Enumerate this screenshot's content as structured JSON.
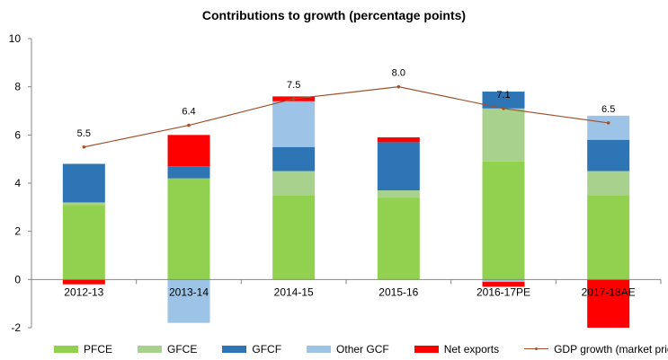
{
  "chart_data": {
    "type": "bar",
    "title": "Contributions to growth (percentage points)",
    "categories": [
      "2012-13",
      "2013-14",
      "2014-15",
      "2015-16",
      "2016-17PE",
      "2017-18AE"
    ],
    "ylim": [
      -2,
      10
    ],
    "yticks": [
      -2,
      0,
      2,
      4,
      6,
      8,
      10
    ],
    "legend_position": "bottom",
    "grid": false,
    "stacked": true,
    "series": [
      {
        "name": "PFCE",
        "color": "#92D050",
        "values": [
          3.1,
          4.2,
          3.5,
          3.4,
          4.9,
          3.5
        ]
      },
      {
        "name": "GFCE",
        "color": "#A9D18E",
        "values": [
          0.1,
          0.0,
          1.0,
          0.3,
          2.2,
          1.0
        ]
      },
      {
        "name": "GFCF",
        "color": "#2E75B6",
        "values": [
          1.6,
          0.5,
          1.0,
          2.0,
          0.7,
          1.3
        ]
      },
      {
        "name": "Other GCF",
        "color": "#9DC3E6",
        "values": [
          0.0,
          -1.8,
          1.9,
          0.0,
          -0.1,
          1.0
        ]
      },
      {
        "name": "Net exports",
        "color": "#FF0000",
        "values": [
          -0.2,
          1.3,
          0.2,
          0.2,
          -0.2,
          -2.0
        ]
      }
    ],
    "line_series": {
      "name": "GDP growth (market prices)",
      "color": "#A0522D",
      "values": [
        5.5,
        6.4,
        7.5,
        8.0,
        7.1,
        6.5
      ],
      "labels": [
        "5.5",
        "6.4",
        "7.5",
        "8.0",
        "7.1",
        "6.5"
      ]
    }
  }
}
